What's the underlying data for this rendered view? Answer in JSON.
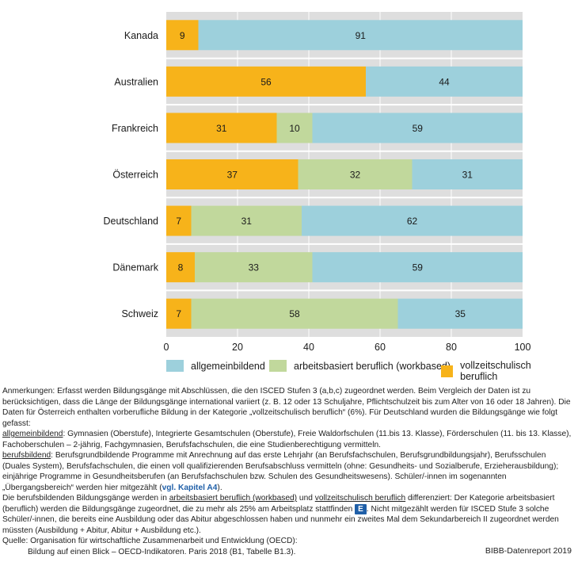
{
  "chart_data": {
    "type": "bar",
    "orientation": "horizontal",
    "stacked": true,
    "categories": [
      "Kanada",
      "Australien",
      "Frankreich",
      "Österreich",
      "Deutschland",
      "Dänemark",
      "Schweiz"
    ],
    "series": [
      {
        "name": "vollzeitschulisch beruflich",
        "color": "#f7b31a",
        "values": [
          9,
          56,
          31,
          37,
          7,
          8,
          7
        ]
      },
      {
        "name": "arbeitsbasiert beruflich (workbased)",
        "color": "#c1d89c",
        "values": [
          0,
          0,
          10,
          32,
          31,
          33,
          58
        ]
      },
      {
        "name": "allgemeinbildend",
        "color": "#9dd0dc",
        "values": [
          91,
          44,
          59,
          31,
          62,
          59,
          35
        ]
      }
    ],
    "xlim": [
      0,
      100
    ],
    "xticks": [
      "0",
      "20",
      "40",
      "60",
      "80",
      "100"
    ],
    "legend_order": [
      "allgemeinbildend",
      "arbeitsbasiert beruflich (workbased)",
      "vollzeitschulisch beruflich"
    ],
    "legend_position": "bottom",
    "grid": true,
    "background": "#dedede"
  },
  "notes": {
    "p1": "Anmerkungen: Erfasst werden Bildungsgänge mit Abschlüssen, die den ISCED Stufen 3 (a,b,c) zugeordnet werden. Beim Vergleich der Daten ist zu berücksichtigen, dass die Länge der Bildungsgänge international variiert (z. B. 12 oder 13 Schuljahre, Pflichtschulzeit bis zum Alter von 16 oder 18 Jahren). Die Daten für Österreich enthalten vorberufliche Bildung in der Kategorie „vollzeitschulisch beruflich“ (6%). Für Deutschland wurden die Bildungsgänge wie folgt gefasst:",
    "p2_term": "allgemeinbildend",
    "p2_text": ": Gymnasien (Oberstufe), Integrierte Gesamtschulen (Oberstufe), Freie Waldorfschulen (11.bis 13. Klasse), Förderschulen (11. bis 13. Klasse), Fachoberschulen – 2-jährig, Fachgymnasien, Berufsfachschulen, die eine Studienberechtigung vermitteln.",
    "p3_term": "berufsbildend",
    "p3_text": ": Berufsgrundbildende Programme mit Anrechnung auf das erste Lehrjahr (an Berufsfachschulen, Berufsgrundbildungsjahr), Berufsschulen (Duales System), Berufsfachschulen, die einen voll qualifizierenden Berufsabschluss vermitteln (ohne: Gesundheits- und Sozialberufe, Erzieherausbildung); einjährige Programme in Gesundheitsberufen (an Berufsfachschulen bzw. Schulen des Gesundheitswesens). Schüler/-innen im sogenannten „Übergangsbereich“ werden hier mitgezählt (",
    "p3_link": "vgl. Kapitel A4",
    "p3_end": ").",
    "p4_a": "Die berufsbildenden Bildungsgänge werden in ",
    "p4_term1": "arbeitsbasiert beruflich (workbased)",
    "p4_b": " und ",
    "p4_term2": "vollzeitschulisch beruflich",
    "p4_c": " differenziert: Der Kategorie arbeitsbasiert (beruflich) werden die Bildungsgänge zugeordnet, die zu mehr als 25% am Arbeitsplatz stattfinden ",
    "p4_badge": "E",
    "p4_d": ". Nicht mitgezählt werden für ISCED Stufe 3 solche Schüler/-innen, die bereits eine Ausbildung oder das Abitur abgeschlossen haben und nunmehr ein zweites Mal dem Sekundarbereich II zugeordnet werden müssten (Ausbildung + Abitur, Abitur + Ausbildung etc.)."
  },
  "source": {
    "line1": "Quelle: Organisation für wirtschaftliche Zusammenarbeit und Entwicklung (OECD):",
    "line2": "Bildung auf einen Blick – OECD-Indikatoren. Paris 2018 (B1, Tabelle B1.3)."
  },
  "report_label": "BIBB-Datenreport 2019"
}
